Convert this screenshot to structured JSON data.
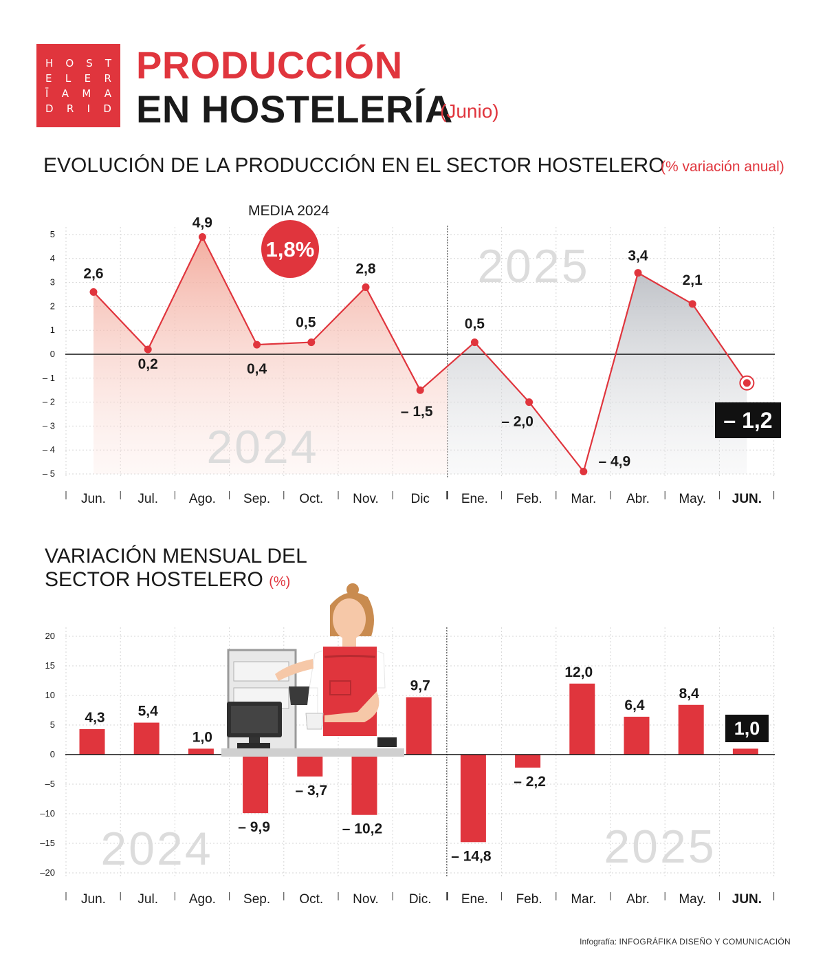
{
  "logo": {
    "rows": [
      [
        "H",
        "O",
        "S",
        "T"
      ],
      [
        "E",
        "L",
        "E",
        "R"
      ],
      [
        "Ī",
        "A",
        "M",
        "A"
      ],
      [
        "D",
        "R",
        "I",
        "D"
      ]
    ]
  },
  "header": {
    "title_line1": "PRODUCCIÓN",
    "title_line2": "EN HOSTELERÍA",
    "title_sub": "(Junio)"
  },
  "section1": {
    "title": "EVOLUCIÓN DE LA PRODUCCIÓN EN EL SECTOR HOSTELERO",
    "subtitle": "(% variación anual)"
  },
  "section2": {
    "title": "VARIACIÓN MENSUAL DEL SECTOR HOSTELERO",
    "subtitle": "(%)"
  },
  "footer": {
    "label": "Infografía:",
    "credit": "INFOGRÁFIKA DISEÑO Y COMUNICACIÓN"
  },
  "colors": {
    "accent": "#e0353d",
    "dark": "#111111",
    "area_2024": "#f4b3a8",
    "area_2025": "#c9ccd1",
    "watermark": "#dcdcdc"
  },
  "icons": [
    "barista-illustration",
    "cash-register-icon"
  ],
  "chart_data": [
    {
      "type": "area",
      "categories": [
        "Jun.",
        "Jul.",
        "Ago.",
        "Sep.",
        "Oct.",
        "Nov.",
        "Dic",
        "Ene.",
        "Feb.",
        "Mar.",
        "Abr.",
        "May.",
        "JUN."
      ],
      "values": [
        2.6,
        0.2,
        4.9,
        0.4,
        0.5,
        2.8,
        -1.5,
        0.5,
        -2.0,
        -4.9,
        3.4,
        2.1,
        -1.2
      ],
      "labels": [
        "2,6",
        "0,2",
        "4,9",
        "0,4",
        "0,5",
        "2,8",
        "– 1,5",
        "0,5",
        "– 2,0",
        "– 4,9",
        "3,4",
        "2,1",
        "– 1,2"
      ],
      "yticks": [
        "5",
        "4",
        "3",
        "2",
        "1",
        "0",
        "– 1",
        "– 2",
        "– 3",
        "– 4",
        "– 5"
      ],
      "ylim": [
        -5,
        5
      ],
      "year_labels": [
        "2024",
        "2025"
      ],
      "annotation": {
        "label": "MEDIA 2024",
        "value": "1,8%"
      },
      "grid": true
    },
    {
      "type": "bar",
      "categories": [
        "Jun.",
        "Jul.",
        "Ago.",
        "Sep.",
        "Oct.",
        "Nov.",
        "Dic.",
        "Ene.",
        "Feb.",
        "Mar.",
        "Abr.",
        "May.",
        "JUN."
      ],
      "values": [
        4.3,
        5.4,
        1.0,
        -9.9,
        -3.7,
        -10.2,
        9.7,
        -14.8,
        -2.2,
        12.0,
        6.4,
        8.4,
        1.0
      ],
      "labels": [
        "4,3",
        "5,4",
        "1,0",
        "– 9,9",
        "– 3,7",
        "– 10,2",
        "9,7",
        "– 14,8",
        "– 2,2",
        "12,0",
        "6,4",
        "8,4",
        "1,0"
      ],
      "yticks": [
        "20",
        "15",
        "10",
        "5",
        "0",
        "–5",
        "–10",
        "–15",
        "–20"
      ],
      "ylim": [
        -20,
        20
      ],
      "year_labels": [
        "2024",
        "2025"
      ],
      "grid": true
    }
  ]
}
